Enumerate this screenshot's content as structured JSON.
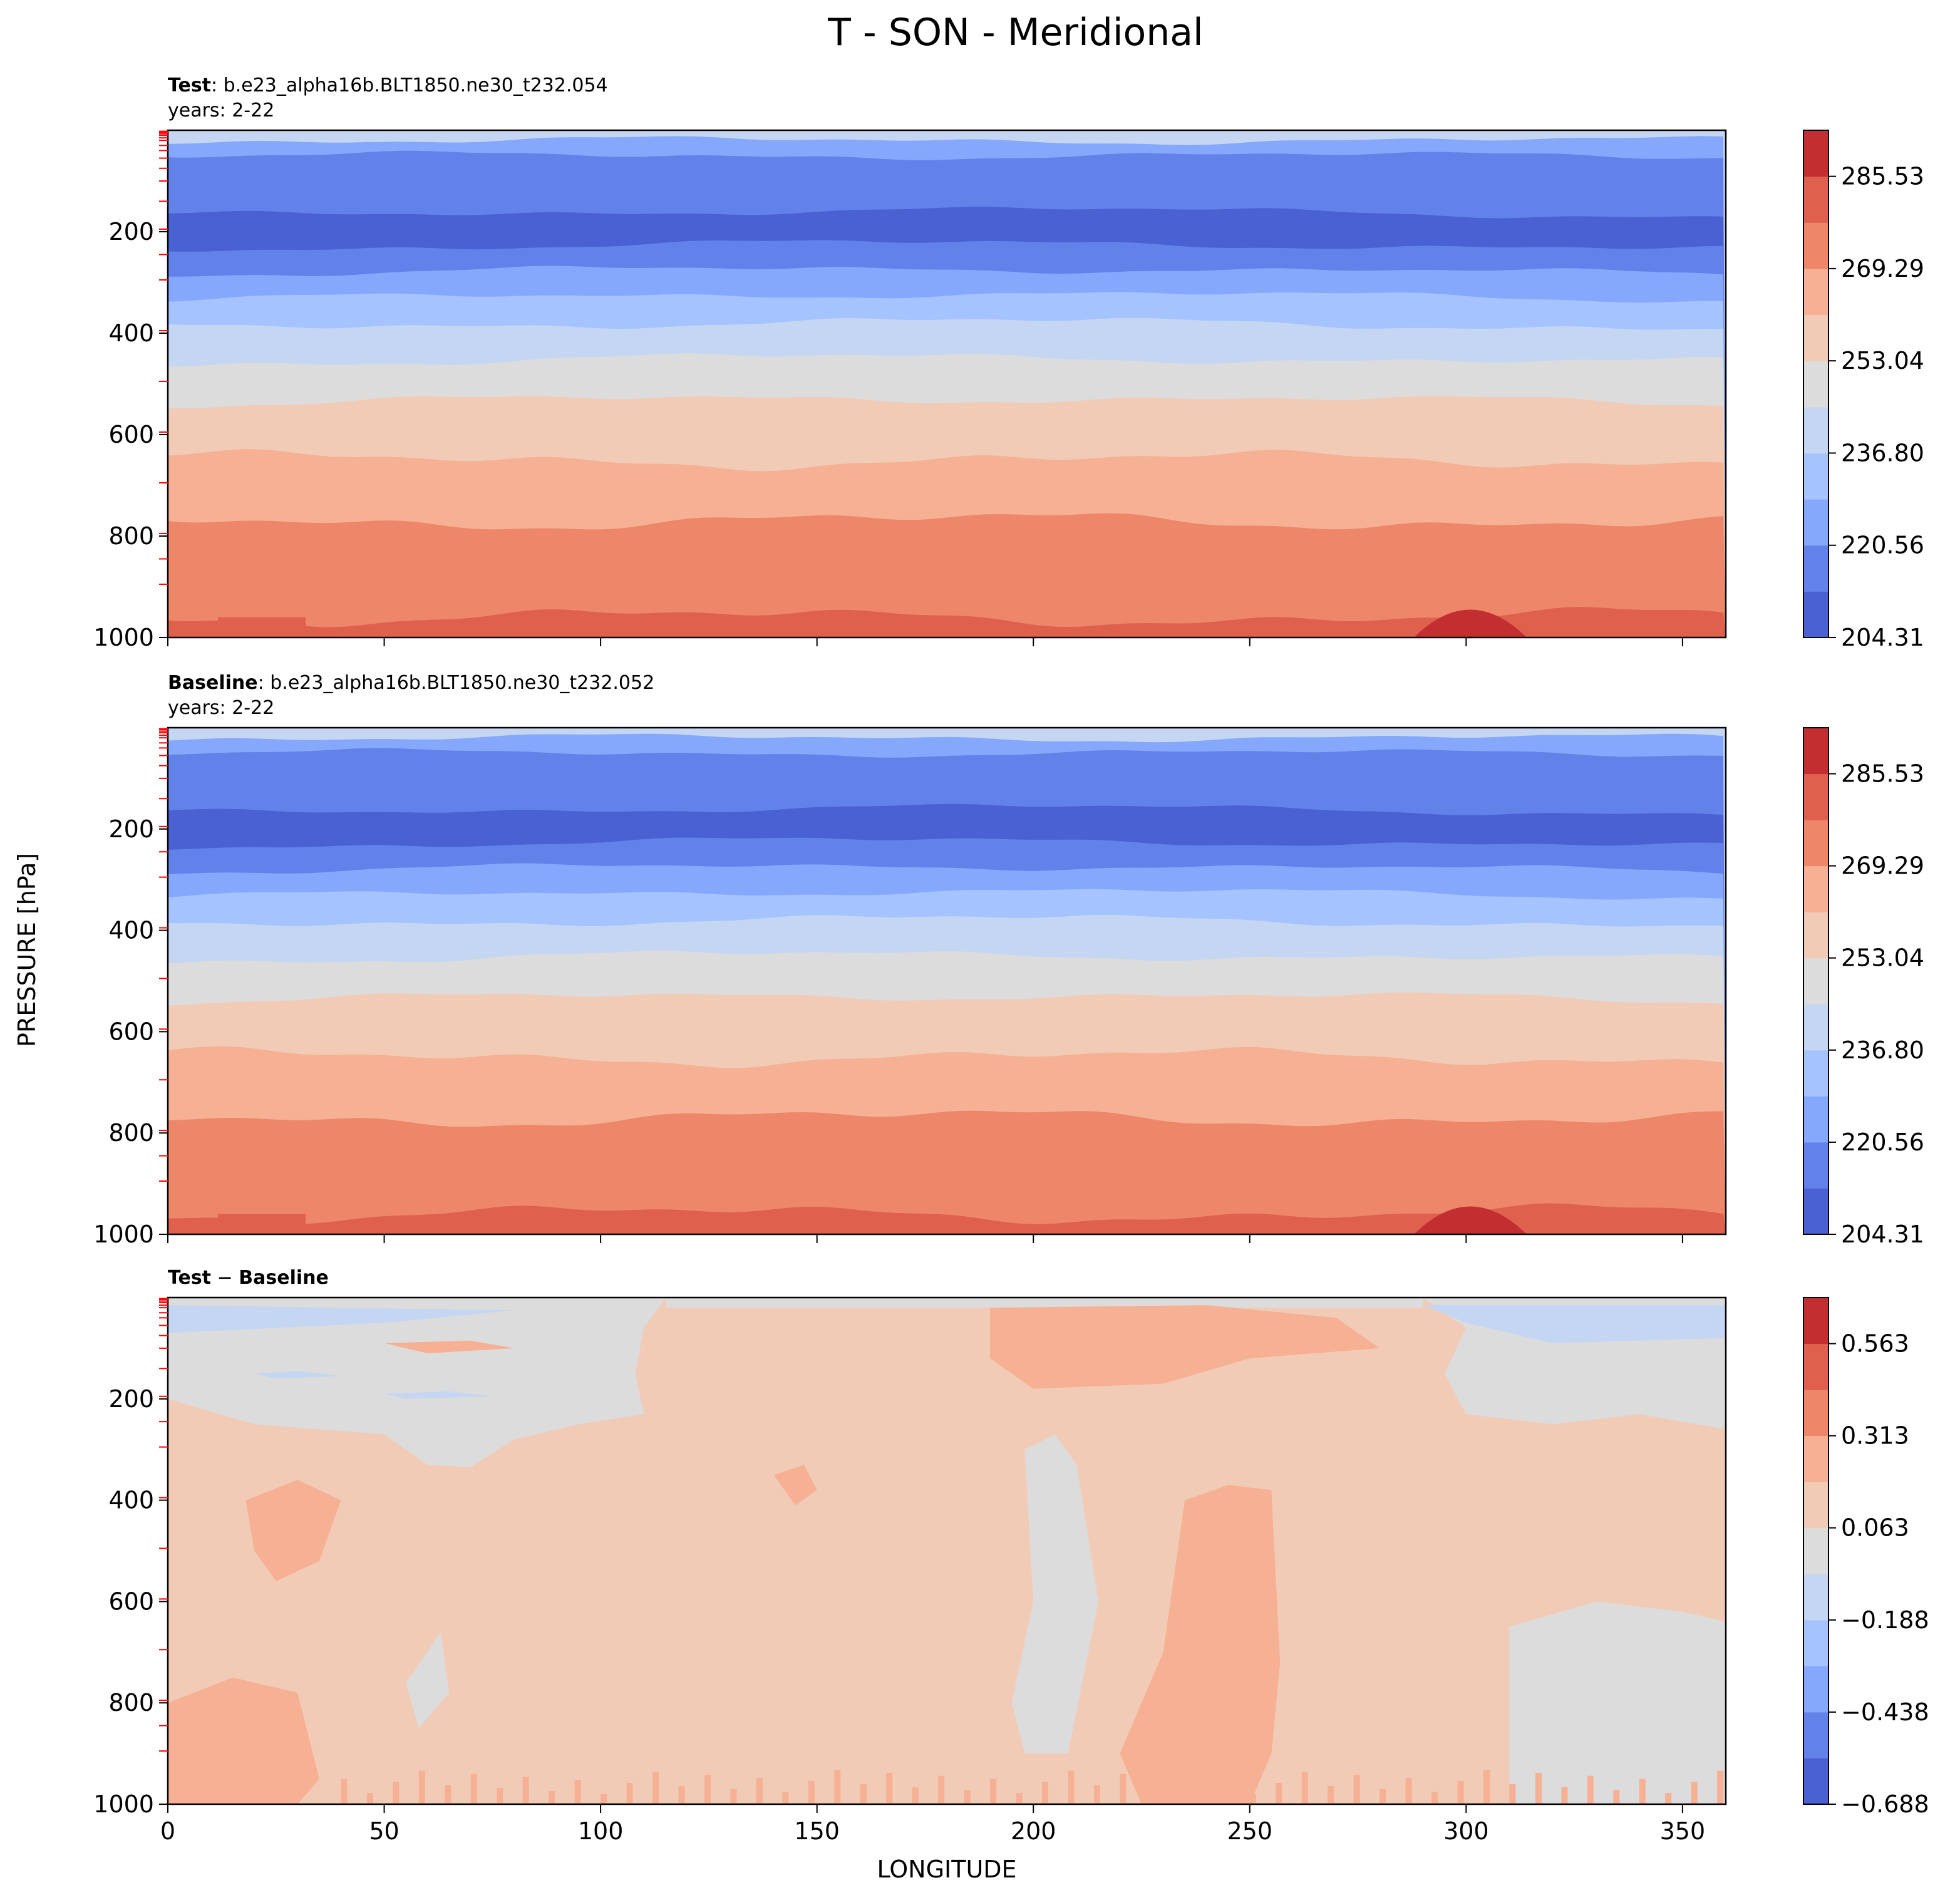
{
  "figure_title": "T - SON - Meridional",
  "shared_ylabel": "PRESSURE [hPa]",
  "shared_xlabel": "LONGITUDE",
  "colors": {
    "full": [
      "#4961d2",
      "#6282ea",
      "#85a8fc",
      "#a5c3fe",
      "#c5d6f2",
      "#dddcdc",
      "#f2cbb7",
      "#f6b093",
      "#ee8669",
      "#de604d",
      "#c32e31"
    ],
    "diff": [
      "#4961d2",
      "#6282ea",
      "#85a8fc",
      "#a5c3fe",
      "#c5d6f2",
      "#dddcdc",
      "#f2cbb7",
      "#f6b093",
      "#ee8669",
      "#de604d",
      "#c32e31"
    ],
    "axis_accent": "#ff0000"
  },
  "chart_data": [
    {
      "type": "heatmap",
      "panel": "test",
      "title_bold": "Test",
      "title_rest": ": b.e23_alpha16b.BLT1850.ne30_t232.054",
      "subtitle": "years: 2-22",
      "xlabel": "",
      "ylabel": "PRESSURE [hPa]",
      "xlim": [
        0,
        360
      ],
      "ylim": [
        1000,
        0
      ],
      "xticks": [
        0,
        50,
        100,
        150,
        200,
        250,
        300,
        350
      ],
      "yticks": [
        200,
        400,
        600,
        800,
        1000
      ],
      "colorbar_ticks": [
        "204.31",
        "220.56",
        "236.80",
        "253.04",
        "269.29",
        "285.53"
      ],
      "colorbar_levels": 11,
      "band_boundaries_hPa": [
        20,
        50,
        170,
        235,
        285,
        335,
        390,
        460,
        540,
        650,
        770,
        960
      ]
    },
    {
      "type": "heatmap",
      "panel": "baseline",
      "title_bold": "Baseline",
      "title_rest": ": b.e23_alpha16b.BLT1850.ne30_t232.052",
      "subtitle": "years: 2-22",
      "xlabel": "",
      "ylabel": "PRESSURE [hPa]",
      "xlim": [
        0,
        360
      ],
      "ylim": [
        1000,
        0
      ],
      "xticks": [
        0,
        50,
        100,
        150,
        200,
        250,
        300,
        350
      ],
      "yticks": [
        200,
        400,
        600,
        800,
        1000
      ],
      "colorbar_ticks": [
        "204.31",
        "220.56",
        "236.80",
        "253.04",
        "269.29",
        "285.53"
      ],
      "colorbar_levels": 11,
      "band_boundaries_hPa": [
        20,
        50,
        170,
        235,
        285,
        335,
        390,
        460,
        540,
        650,
        770,
        960
      ]
    },
    {
      "type": "heatmap",
      "panel": "diff",
      "title_bold": "Test",
      "title_minus": " − ",
      "title_bold2": "Baseline",
      "xlabel": "LONGITUDE",
      "ylabel": "PRESSURE [hPa]",
      "xlim": [
        0,
        360
      ],
      "ylim": [
        1000,
        0
      ],
      "xticks": [
        0,
        50,
        100,
        150,
        200,
        250,
        300,
        350
      ],
      "xtick_labels": [
        "0",
        "50",
        "100",
        "150",
        "200",
        "250",
        "300",
        "350"
      ],
      "yticks": [
        200,
        400,
        600,
        800,
        1000
      ],
      "colorbar_ticks": [
        "−0.688",
        "−0.438",
        "−0.188",
        "0.063",
        "0.313",
        "0.563"
      ],
      "colorbar_levels": 11,
      "dominant_level_index": 6
    }
  ]
}
